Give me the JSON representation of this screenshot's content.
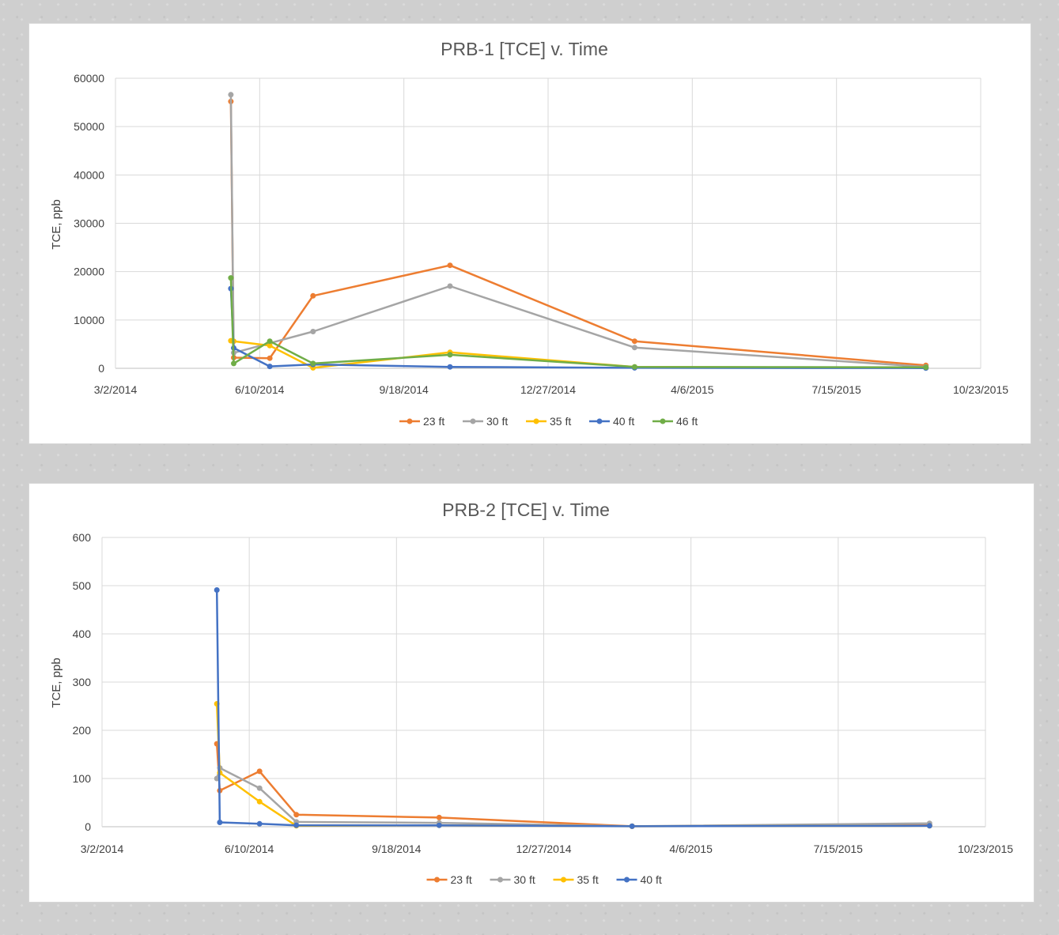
{
  "chart_data": [
    {
      "type": "line",
      "title": "PRB-1   [TCE]  v.   Time",
      "xlabel": "",
      "ylabel": "TCE, ppb",
      "xlim": [
        "2014-03-02",
        "2015-10-23"
      ],
      "ylim": [
        0,
        60000
      ],
      "x_ticks": [
        "3/2/2014",
        "6/10/2014",
        "9/18/2014",
        "12/27/2014",
        "4/6/2015",
        "7/15/2015",
        "10/23/2015"
      ],
      "y_ticks": [
        "0",
        "10000",
        "20000",
        "30000",
        "40000",
        "50000",
        "60000"
      ],
      "grid": true,
      "legend_position": "bottom",
      "series": [
        {
          "name": "23     ft",
          "color": "#ED7D31",
          "points": [
            [
              "2014-05-21",
              55200
            ],
            [
              "2014-05-23",
              2200
            ],
            [
              "2014-06-17",
              2100
            ],
            [
              "2014-07-17",
              15000
            ],
            [
              "2014-10-20",
              21300
            ],
            [
              "2015-02-25",
              5600
            ],
            [
              "2015-09-15",
              600
            ]
          ]
        },
        {
          "name": "30     ft",
          "color": "#A5A5A5",
          "points": [
            [
              "2014-05-21",
              56600
            ],
            [
              "2014-05-23",
              3200
            ],
            [
              "2014-06-17",
              5200
            ],
            [
              "2014-07-17",
              7600
            ],
            [
              "2014-10-20",
              17000
            ],
            [
              "2015-02-25",
              4300
            ],
            [
              "2015-09-15",
              300
            ]
          ]
        },
        {
          "name": "35     ft",
          "color": "#FFC000",
          "points": [
            [
              "2014-05-21",
              5700
            ],
            [
              "2014-05-23",
              5600
            ],
            [
              "2014-06-17",
              4700
            ],
            [
              "2014-07-17",
              100
            ],
            [
              "2014-10-20",
              3300
            ],
            [
              "2015-02-25",
              300
            ],
            [
              "2015-09-15",
              100
            ]
          ]
        },
        {
          "name": "40     ft",
          "color": "#4472C4",
          "points": [
            [
              "2014-05-21",
              16500
            ],
            [
              "2014-05-23",
              4200
            ],
            [
              "2014-06-17",
              400
            ],
            [
              "2014-07-17",
              800
            ],
            [
              "2014-10-20",
              300
            ],
            [
              "2015-02-25",
              100
            ],
            [
              "2015-09-15",
              50
            ]
          ]
        },
        {
          "name": "46     ft",
          "color": "#70AD47",
          "points": [
            [
              "2014-05-21",
              18700
            ],
            [
              "2014-05-23",
              1000
            ],
            [
              "2014-06-17",
              5600
            ],
            [
              "2014-07-17",
              1000
            ],
            [
              "2014-10-20",
              2800
            ],
            [
              "2015-02-25",
              300
            ],
            [
              "2015-09-15",
              200
            ]
          ]
        }
      ]
    },
    {
      "type": "line",
      "title": "PRB-2   [TCE]  v.   Time",
      "xlabel": "",
      "ylabel": "TCE, ppb",
      "xlim": [
        "2014-03-02",
        "2015-10-23"
      ],
      "ylim": [
        0,
        600
      ],
      "x_ticks": [
        "3/2/2014",
        "6/10/2014",
        "9/18/2014",
        "12/27/2014",
        "4/6/2015",
        "7/15/2015",
        "10/23/2015"
      ],
      "y_ticks": [
        "0",
        "100",
        "200",
        "300",
        "400",
        "500",
        "600"
      ],
      "grid": true,
      "legend_position": "bottom",
      "series": [
        {
          "name": "23     ft",
          "color": "#ED7D31",
          "points": [
            [
              "2014-05-19",
              172
            ],
            [
              "2014-05-21",
              75
            ],
            [
              "2014-06-17",
              115
            ],
            [
              "2014-07-12",
              25
            ],
            [
              "2014-10-17",
              19
            ],
            [
              "2015-02-25",
              1
            ],
            [
              "2015-09-15",
              3
            ]
          ]
        },
        {
          "name": "30     ft",
          "color": "#A5A5A5",
          "points": [
            [
              "2014-05-19",
              100
            ],
            [
              "2014-05-21",
              122
            ],
            [
              "2014-06-17",
              80
            ],
            [
              "2014-07-12",
              10
            ],
            [
              "2014-10-17",
              8
            ],
            [
              "2015-02-25",
              1
            ],
            [
              "2015-09-15",
              7
            ]
          ]
        },
        {
          "name": "35     ft",
          "color": "#FFC000",
          "points": [
            [
              "2014-05-19",
              255
            ],
            [
              "2014-05-21",
              112
            ],
            [
              "2014-06-17",
              52
            ],
            [
              "2014-07-12",
              2
            ],
            [
              "2014-10-17",
              3
            ],
            [
              "2015-02-25",
              1
            ],
            [
              "2015-09-15",
              2
            ]
          ]
        },
        {
          "name": "40     ft",
          "color": "#4472C4",
          "points": [
            [
              "2014-05-19",
              491
            ],
            [
              "2014-05-21",
              9
            ],
            [
              "2014-06-17",
              6
            ],
            [
              "2014-07-12",
              3
            ],
            [
              "2014-10-17",
              3
            ],
            [
              "2015-02-25",
              1
            ],
            [
              "2015-09-15",
              2
            ]
          ]
        }
      ]
    }
  ]
}
